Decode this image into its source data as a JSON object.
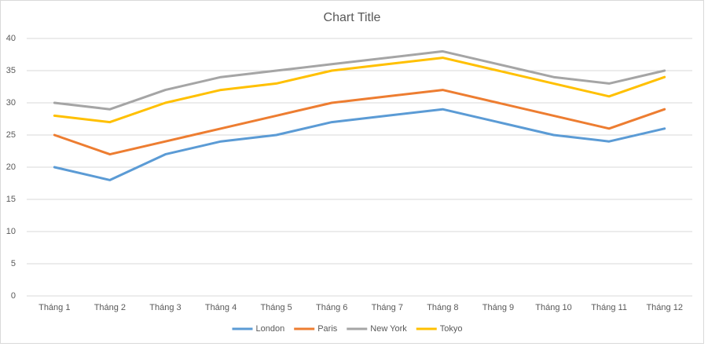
{
  "chart_data": {
    "type": "line",
    "title": "Chart Title",
    "categories": [
      "Tháng 1",
      "Tháng 2",
      "Tháng 3",
      "Tháng 4",
      "Tháng 5",
      "Tháng 6",
      "Tháng 7",
      "Tháng 8",
      "Tháng 9",
      "Tháng 10",
      "Tháng 11",
      "Tháng 12"
    ],
    "series": [
      {
        "name": "London",
        "color": "#5b9bd5",
        "values": [
          20,
          18,
          22,
          24,
          25,
          27,
          28,
          29,
          27,
          25,
          24,
          26
        ]
      },
      {
        "name": "Paris",
        "color": "#ed7d31",
        "values": [
          25,
          22,
          24,
          26,
          28,
          30,
          31,
          32,
          30,
          28,
          26,
          29
        ]
      },
      {
        "name": "New York",
        "color": "#a5a5a5",
        "values": [
          30,
          29,
          32,
          34,
          35,
          36,
          37,
          38,
          36,
          34,
          33,
          35
        ]
      },
      {
        "name": "Tokyo",
        "color": "#ffc000",
        "values": [
          28,
          27,
          30,
          32,
          33,
          35,
          36,
          37,
          35,
          33,
          31,
          34
        ]
      }
    ],
    "ylim": [
      0,
      40
    ],
    "yticks": [
      0,
      5,
      10,
      15,
      20,
      25,
      30,
      35,
      40
    ],
    "grid": true,
    "legend": "bottom"
  }
}
